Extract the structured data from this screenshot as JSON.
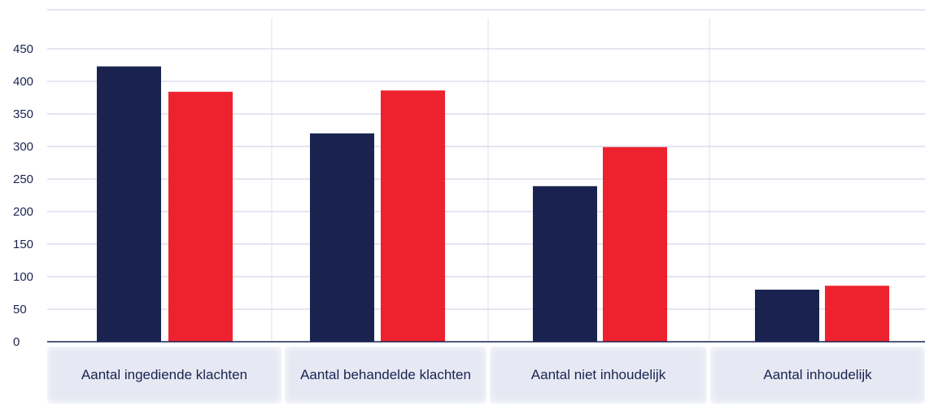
{
  "chart_data": {
    "type": "bar",
    "categories": [
      "Aantal ingediende klachten",
      "Aantal behandelde klachten",
      "Aantal niet inhoudelijk",
      "Aantal inhoudelijk"
    ],
    "series": [
      {
        "values": [
          423,
          320,
          239,
          80
        ]
      },
      {
        "values": [
          384,
          386,
          299,
          86
        ]
      }
    ],
    "colors": [
      "#1a2350",
      "#ee222e"
    ],
    "ylim": [
      0,
      450
    ],
    "yticks": [
      "0",
      "50",
      "100",
      "150",
      "200",
      "250",
      "300",
      "350",
      "400",
      "450"
    ],
    "grid": true,
    "title": "",
    "xlabel": "",
    "ylabel": ""
  }
}
